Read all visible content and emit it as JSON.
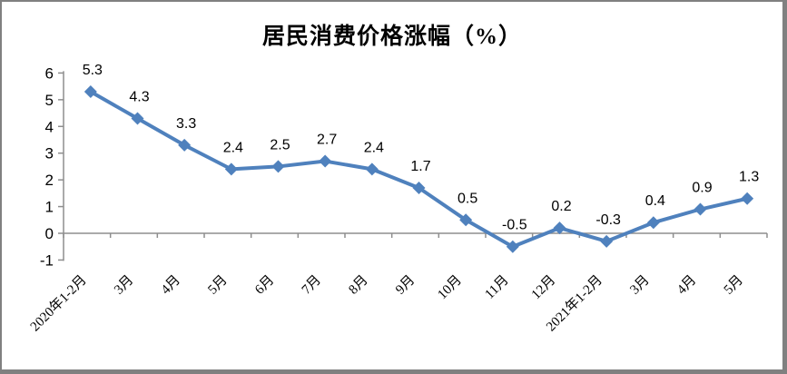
{
  "frame": {
    "background": "#FFFFFF",
    "border_color": "#808080"
  },
  "chart_data": {
    "type": "line",
    "title": "居民消费价格涨幅（%）",
    "categories": [
      "2020年1-2月",
      "3月",
      "4月",
      "5月",
      "6月",
      "7月",
      "8月",
      "9月",
      "10月",
      "11月",
      "12月",
      "2021年1-2月",
      "3月",
      "4月",
      "5月"
    ],
    "values": [
      5.3,
      4.3,
      3.3,
      2.4,
      2.5,
      2.7,
      2.4,
      1.7,
      0.5,
      -0.5,
      0.2,
      -0.3,
      0.4,
      0.9,
      1.3
    ],
    "data_labels": [
      "5.3",
      "4.3",
      "3.3",
      "2.4",
      "2.5",
      "2.7",
      "2.4",
      "1.7",
      "0.5",
      "-0.5",
      "0.2",
      "-0.3",
      "0.4",
      "0.9",
      "1.3"
    ],
    "xlabel": "",
    "ylabel": "",
    "ylim": [
      -1,
      6
    ],
    "yticks": [
      -1,
      0,
      1,
      2,
      3,
      4,
      5,
      6
    ],
    "grid": false,
    "legend_position": "none",
    "marker": "diamond",
    "line_color": "#4F81BD",
    "axis_color": "#8E8E8E",
    "label_color": "#000000",
    "x_label_rotation_deg": -45
  }
}
